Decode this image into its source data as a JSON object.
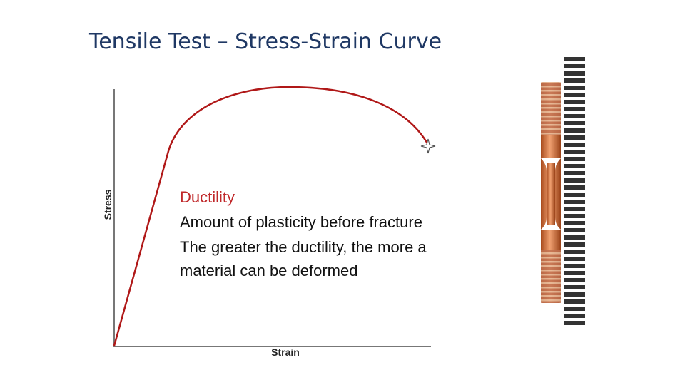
{
  "header": {
    "title": "Tensile Test – Stress-Strain Curve"
  },
  "diagram": {
    "y_axis_label": "Stress",
    "x_axis_label": "Strain"
  },
  "text_block": {
    "heading": "Ductility",
    "lines": [
      "Amount of plasticity before fracture",
      "The greater the ductility, the more a",
      "material can be deformed"
    ]
  }
}
